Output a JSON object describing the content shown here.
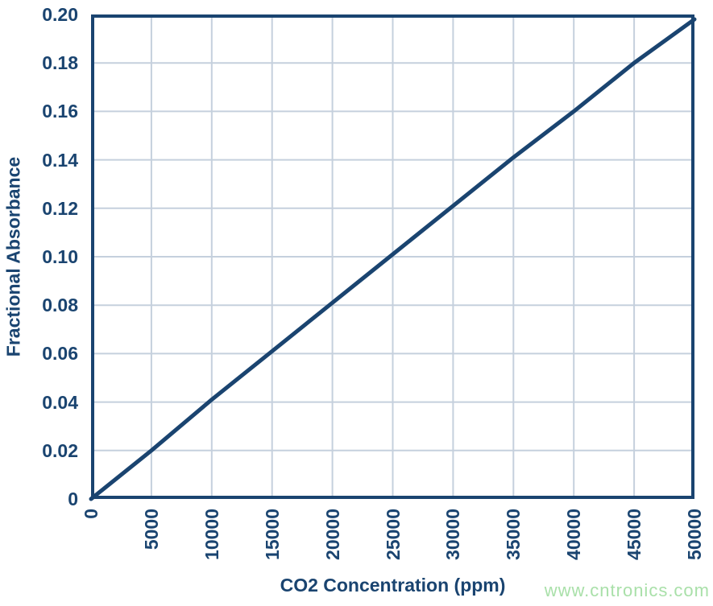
{
  "chart_data": {
    "type": "line",
    "title": "",
    "xlabel": "CO2 Concentration (ppm)",
    "ylabel": "Fractional Absorbance",
    "x": [
      0,
      5000,
      10000,
      15000,
      20000,
      25000,
      30000,
      35000,
      40000,
      45000,
      50000
    ],
    "series": [
      {
        "name": "Fractional Absorbance",
        "values": [
          0,
          0.02,
          0.041,
          0.061,
          0.081,
          0.101,
          0.121,
          0.141,
          0.16,
          0.18,
          0.198
        ]
      }
    ],
    "xlim": [
      0,
      50000
    ],
    "ylim": [
      0,
      0.2
    ],
    "x_ticks": [
      0,
      5000,
      10000,
      15000,
      20000,
      25000,
      30000,
      35000,
      40000,
      45000,
      50000
    ],
    "x_tick_labels": [
      "0",
      "5000",
      "10000",
      "15000",
      "20000",
      "25000",
      "30000",
      "35000",
      "40000",
      "45000",
      "50000"
    ],
    "y_ticks": [
      0,
      0.02,
      0.04,
      0.06,
      0.08,
      0.1,
      0.12,
      0.14,
      0.16,
      0.18,
      0.2
    ],
    "y_tick_labels": [
      "0",
      "0.02",
      "0.04",
      "0.06",
      "0.08",
      "0.10",
      "0.12",
      "0.14",
      "0.16",
      "0.18",
      "0.20"
    ],
    "grid": true,
    "legend": "none",
    "line_color": "#1a4470",
    "axis_color": "#1a4470",
    "grid_color": "#c5d0dd",
    "label_color": "#1a4470"
  },
  "watermark": {
    "text": "www.cntronics.com",
    "color": "#a9e0a9"
  }
}
